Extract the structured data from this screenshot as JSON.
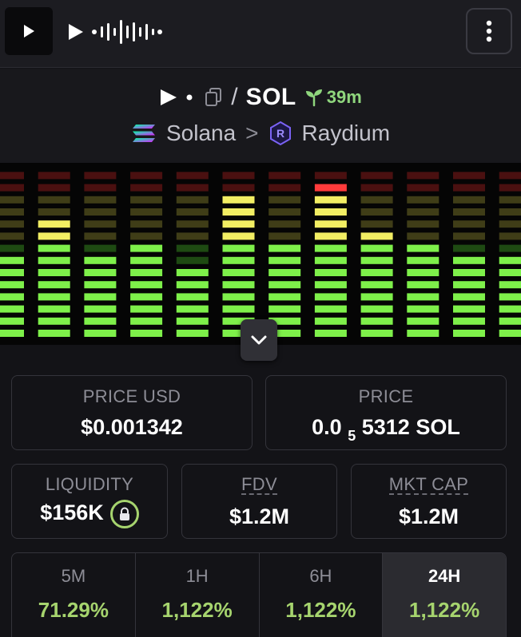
{
  "header": {
    "logo_icon": "play-icon",
    "brand_icons": [
      "play-icon",
      "waveform-icon"
    ],
    "menu_icon": "vertical-dots-icon"
  },
  "token": {
    "separator": "/",
    "quote": "SOL",
    "age": "39m",
    "chain": "Solana",
    "chevron": ">",
    "dex": "Raydium"
  },
  "stats": {
    "price_usd_label": "PRICE USD",
    "price_usd_value": "$0.001342",
    "price_label": "PRICE",
    "price_value_prefix": "0.0",
    "price_value_sub": "5",
    "price_value_suffix": "5312 SOL",
    "liquidity_label": "LIQUIDITY",
    "liquidity_value": "$156K",
    "fdv_label": "FDV",
    "fdv_value": "$1.2M",
    "mktcap_label": "MKT CAP",
    "mktcap_value": "$1.2M"
  },
  "timeframes": [
    {
      "label": "5M",
      "value": "71.29%"
    },
    {
      "label": "1H",
      "value": "1,122%"
    },
    {
      "label": "6H",
      "value": "1,122%"
    },
    {
      "label": "24H",
      "value": "1,122%"
    }
  ],
  "equalizer_levels": [
    7,
    10,
    7,
    8,
    6,
    12,
    8,
    13,
    9,
    8,
    7,
    7
  ],
  "colors": {
    "green": "#7ef04a",
    "yellow": "#f2ee63",
    "red": "#ff3b3b",
    "positive": "#a6d46e"
  }
}
